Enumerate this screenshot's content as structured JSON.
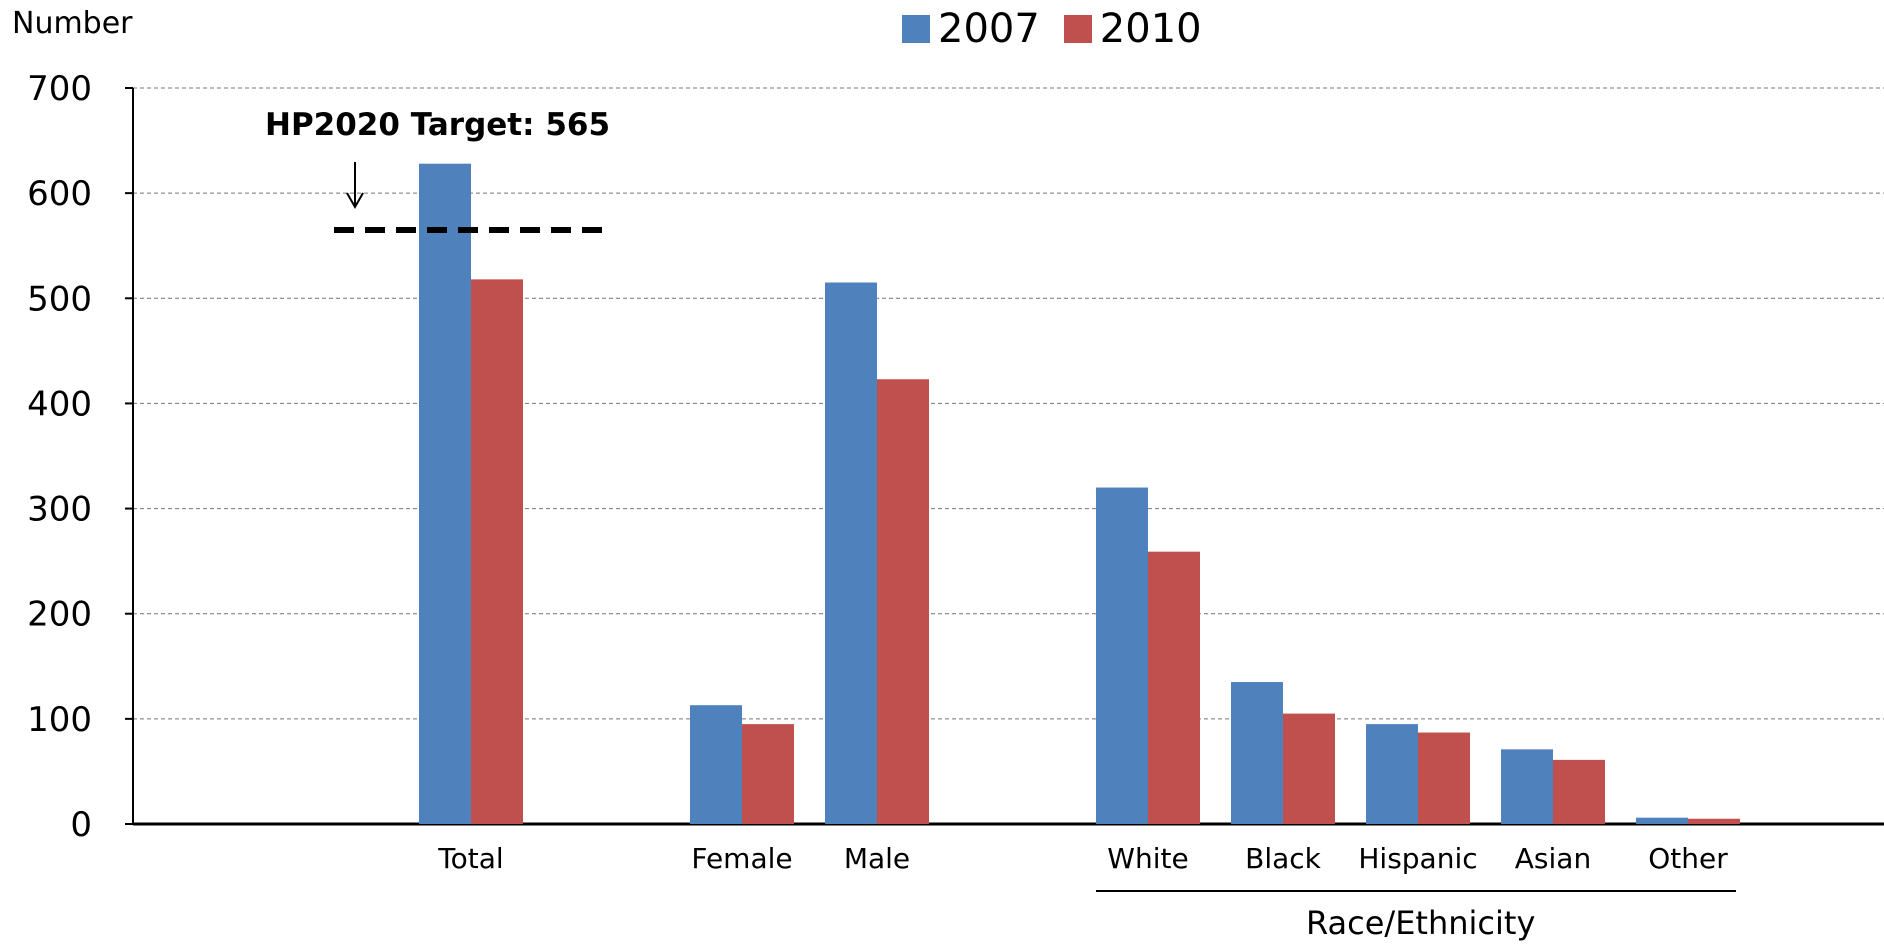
{
  "chart_data": {
    "type": "bar",
    "ylabel": "Number",
    "ylim": [
      0,
      700
    ],
    "yticks": [
      0,
      100,
      200,
      300,
      400,
      500,
      600,
      700
    ],
    "grid": "dashed horizontal",
    "legend_position": "top-center",
    "categories": [
      "Total",
      "Female",
      "Male",
      "White",
      "Black",
      "Hispanic",
      "Asian",
      "Other"
    ],
    "series": [
      {
        "name": "2007",
        "color": "#4f81bd",
        "values": [
          628,
          113,
          515,
          320,
          135,
          95,
          71,
          6
        ]
      },
      {
        "name": "2010",
        "color": "#c0504d",
        "values": [
          518,
          95,
          423,
          259,
          105,
          87,
          61,
          5
        ]
      }
    ],
    "target": {
      "label": "HP2020 Target: 565",
      "value": 565
    },
    "group_label": "Race/Ethnicity",
    "group_categories": [
      "White",
      "Black",
      "Hispanic",
      "Asian",
      "Other"
    ]
  }
}
